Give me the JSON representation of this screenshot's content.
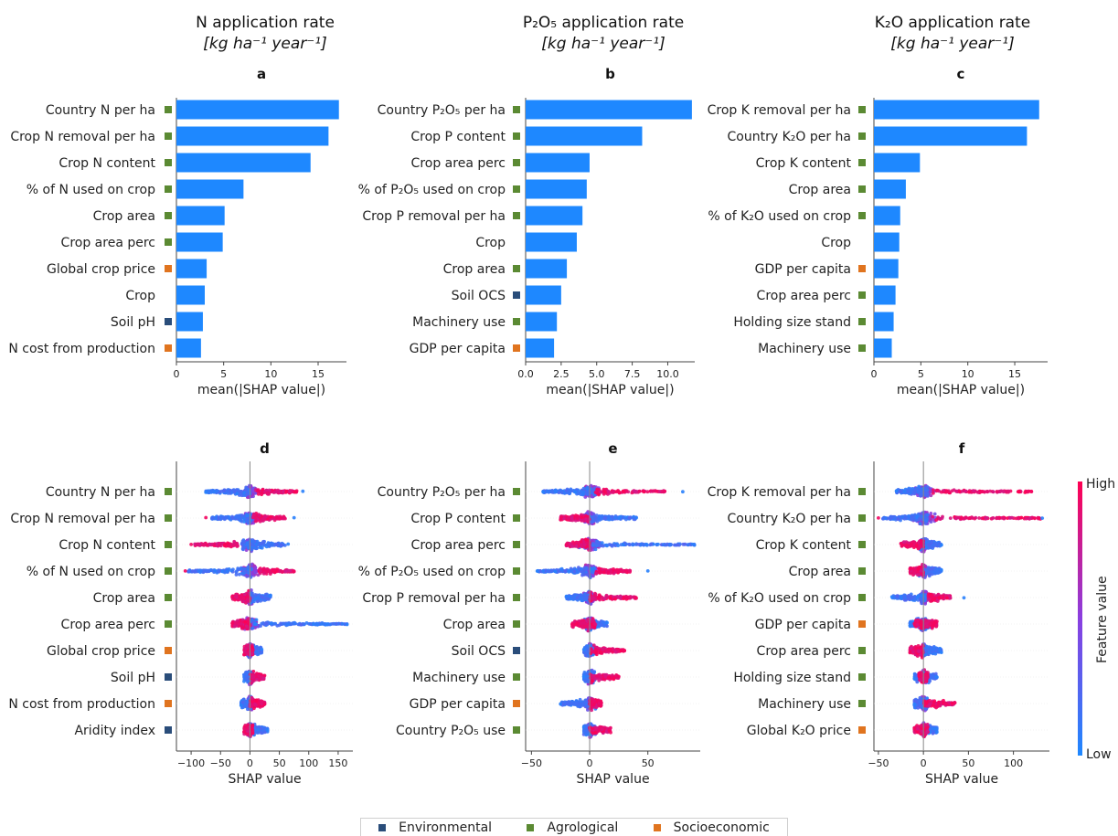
{
  "colors": {
    "bar": "#1e88ff",
    "low": "#1e88ff",
    "mid": "#8a3fe0",
    "high": "#ff0052",
    "Environmental": "#2a4d7a",
    "Agrological": "#5b8a33",
    "Socioeconomic": "#e0741f"
  },
  "column_titles": [
    {
      "line1": "N application rate",
      "line2": "[kg ha⁻¹ year⁻¹]"
    },
    {
      "line1": "P₂O₅ application rate",
      "line2": "[kg ha⁻¹ year⁻¹]"
    },
    {
      "line1": "K₂O application rate",
      "line2": "[kg ha⁻¹ year⁻¹]"
    }
  ],
  "legend": [
    {
      "label": "Environmental",
      "color_key": "Environmental"
    },
    {
      "label": "Agrological",
      "color_key": "Agrological"
    },
    {
      "label": "Socioeconomic",
      "color_key": "Socioeconomic"
    }
  ],
  "colorbar": {
    "label": "Feature value",
    "high": "High",
    "low": "Low"
  },
  "chart_data": [
    {
      "type": "bar",
      "panel": "a",
      "xlabel": "mean(|SHAP value|)",
      "xlim": [
        0,
        18
      ],
      "xticks": [
        0,
        5,
        10,
        15
      ],
      "tick_labels": [
        "0",
        "5",
        "10",
        "15"
      ],
      "categories": [
        "Country N per ha",
        "Crop N removal per ha",
        "Crop N content",
        "% of N used on crop",
        "Crop area",
        "Crop area perc",
        "Global crop price",
        "Crop",
        "Soil pH",
        "N cost from production"
      ],
      "groups": [
        "Agrological",
        "Agrological",
        "Agrological",
        "Agrological",
        "Agrological",
        "Agrological",
        "Socioeconomic",
        "",
        "Environmental",
        "Socioeconomic"
      ],
      "values": [
        17.2,
        16.1,
        14.2,
        7.1,
        5.1,
        4.9,
        3.2,
        3.0,
        2.8,
        2.6
      ]
    },
    {
      "type": "bar",
      "panel": "b",
      "xlabel": "mean(|SHAP value|)",
      "xlim": [
        0,
        11.9
      ],
      "xticks": [
        0,
        2.5,
        5,
        7.5,
        10
      ],
      "tick_labels": [
        "0.0",
        "2.5",
        "5.0",
        "7.5",
        "10.0"
      ],
      "categories": [
        "Country P₂O₅ per ha",
        "Crop P content",
        "Crop area perc",
        "% of P₂O₅ used on crop",
        "Crop P removal per ha",
        "Crop",
        "Crop area",
        "Soil OCS",
        "Machinery use",
        "GDP per capita"
      ],
      "groups": [
        "Agrological",
        "Agrological",
        "Agrological",
        "Agrological",
        "Agrological",
        "",
        "Agrological",
        "Environmental",
        "Agrological",
        "Socioeconomic"
      ],
      "values": [
        11.7,
        8.2,
        4.5,
        4.3,
        4.0,
        3.6,
        2.9,
        2.5,
        2.2,
        2.0
      ]
    },
    {
      "type": "bar",
      "panel": "c",
      "xlabel": "mean(|SHAP value|)",
      "xlim": [
        0,
        18.5
      ],
      "xticks": [
        0,
        5,
        10,
        15
      ],
      "tick_labels": [
        "0",
        "5",
        "10",
        "15"
      ],
      "categories": [
        "Crop K removal per ha",
        "Country K₂O per ha",
        "Crop K content",
        "Crop area",
        "% of K₂O used on crop",
        "Crop",
        "GDP per capita",
        "Crop area perc",
        "Holding size stand",
        "Machinery use"
      ],
      "groups": [
        "Agrological",
        "Agrological",
        "Agrological",
        "Agrological",
        "Agrological",
        "",
        "Socioeconomic",
        "Agrological",
        "Agrological",
        "Agrological"
      ],
      "values": [
        17.6,
        16.3,
        4.9,
        3.4,
        2.8,
        2.7,
        2.6,
        2.3,
        2.1,
        1.9
      ]
    },
    {
      "type": "scatter",
      "panel": "d",
      "xlabel": "SHAP value",
      "xlim": [
        -125,
        175
      ],
      "xticks": [
        -100,
        -50,
        0,
        50,
        100,
        150
      ],
      "tick_labels": [
        "−100",
        "−50",
        "0",
        "50",
        "100",
        "150"
      ],
      "categories": [
        "Country N per ha",
        "Crop N removal per ha",
        "Crop N content",
        "% of N used on crop",
        "Crop area",
        "Crop area perc",
        "Global crop price",
        "Soil pH",
        "N cost from production",
        "Aridity index"
      ],
      "groups": [
        "Agrological",
        "Agrological",
        "Agrological",
        "Agrological",
        "Agrological",
        "Agrological",
        "Socioeconomic",
        "Environmental",
        "Socioeconomic",
        "Environmental"
      ],
      "rows": [
        {
          "blue": [
            -75,
            0
          ],
          "pink": [
            10,
            80
          ],
          "lowMax": -75,
          "highMax": 90
        },
        {
          "blue": [
            -65,
            5
          ],
          "pink": [
            5,
            60
          ],
          "lowMax": -75,
          "highMax": 75
        },
        {
          "blue": [
            -15,
            60
          ],
          "pink": [
            -95,
            -20
          ],
          "lowMax": -100,
          "highMax": 65
        },
        {
          "blue": [
            -105,
            5
          ],
          "pink": [
            15,
            75
          ],
          "lowMax": -110,
          "highMax": 75
        },
        {
          "blue": [
            0,
            35
          ],
          "pink": [
            -30,
            0
          ],
          "lowMax": -30,
          "highMax": 35
        },
        {
          "blue": [
            0,
            165
          ],
          "pink": [
            -30,
            0
          ],
          "lowMax": -30,
          "highMax": 165
        },
        {
          "blue": [
            -5,
            20
          ],
          "pink": [
            -10,
            5
          ],
          "lowMax": -10,
          "highMax": 20
        },
        {
          "blue": [
            -10,
            5
          ],
          "pink": [
            0,
            25
          ],
          "lowMax": -10,
          "highMax": 25
        },
        {
          "blue": [
            -15,
            5
          ],
          "pink": [
            0,
            25
          ],
          "lowMax": -15,
          "highMax": 25
        },
        {
          "blue": [
            0,
            30
          ],
          "pink": [
            -10,
            5
          ],
          "lowMax": -10,
          "highMax": 30
        }
      ]
    },
    {
      "type": "scatter",
      "panel": "e",
      "xlabel": "SHAP value",
      "xlim": [
        -55,
        95
      ],
      "xticks": [
        -50,
        0,
        50
      ],
      "tick_labels": [
        "−50",
        "0",
        "50"
      ],
      "categories": [
        "Country P₂O₅ per ha",
        "Crop P content",
        "Crop area perc",
        "% of P₂O₅ used on crop",
        "Crop P removal per ha",
        "Crop area",
        "Soil OCS",
        "Machinery use",
        "GDP per capita",
        "Country P₂O₅ use"
      ],
      "groups": [
        "Agrological",
        "Agrological",
        "Agrological",
        "Agrological",
        "Agrological",
        "Agrological",
        "Environmental",
        "Agrological",
        "Socioeconomic",
        "Agrological"
      ],
      "rows": [
        {
          "blue": [
            -40,
            5
          ],
          "pink": [
            5,
            65
          ],
          "lowMax": -40,
          "highMax": 80
        },
        {
          "blue": [
            0,
            40
          ],
          "pink": [
            -25,
            0
          ],
          "lowMax": -25,
          "highMax": 40
        },
        {
          "blue": [
            -10,
            90
          ],
          "pink": [
            -20,
            0
          ],
          "lowMax": -20,
          "highMax": 90
        },
        {
          "blue": [
            -45,
            5
          ],
          "pink": [
            5,
            35
          ],
          "lowMax": -45,
          "highMax": 50
        },
        {
          "blue": [
            -20,
            0
          ],
          "pink": [
            0,
            40
          ],
          "lowMax": -20,
          "highMax": 40
        },
        {
          "blue": [
            -10,
            15
          ],
          "pink": [
            -15,
            5
          ],
          "lowMax": -15,
          "highMax": 15
        },
        {
          "blue": [
            -5,
            5
          ],
          "pink": [
            0,
            30
          ],
          "lowMax": -5,
          "highMax": 30
        },
        {
          "blue": [
            -5,
            5
          ],
          "pink": [
            0,
            25
          ],
          "lowMax": -5,
          "highMax": 25
        },
        {
          "blue": [
            -25,
            5
          ],
          "pink": [
            0,
            10
          ],
          "lowMax": -25,
          "highMax": 10
        },
        {
          "blue": [
            -5,
            5
          ],
          "pink": [
            0,
            18
          ],
          "lowMax": -5,
          "highMax": 18
        }
      ]
    },
    {
      "type": "scatter",
      "panel": "f",
      "xlabel": "SHAP value",
      "xlim": [
        -55,
        140
      ],
      "xticks": [
        -50,
        0,
        50,
        100
      ],
      "tick_labels": [
        "−50",
        "0",
        "50",
        "100"
      ],
      "categories": [
        "Crop K removal per ha",
        "Country K₂O per ha",
        "Crop K content",
        "Crop area",
        "% of K₂O used on crop",
        "GDP per capita",
        "Crop area perc",
        "Holding size stand",
        "Machinery use",
        "Global K₂O price"
      ],
      "groups": [
        "Agrological",
        "Agrological",
        "Agrological",
        "Agrological",
        "Agrological",
        "Socioeconomic",
        "Agrological",
        "Agrological",
        "Agrological",
        "Socioeconomic"
      ],
      "rows": [
        {
          "blue": [
            -30,
            5
          ],
          "pink": [
            10,
            120
          ],
          "lowMax": -30,
          "highMax": 120
        },
        {
          "blue": [
            -45,
            5
          ],
          "pink": [
            10,
            130
          ],
          "lowMax": -50,
          "highMax": 132
        },
        {
          "blue": [
            -5,
            20
          ],
          "pink": [
            -25,
            0
          ],
          "lowMax": -25,
          "highMax": 20
        },
        {
          "blue": [
            -5,
            20
          ],
          "pink": [
            -15,
            0
          ],
          "lowMax": -15,
          "highMax": 20
        },
        {
          "blue": [
            -35,
            5
          ],
          "pink": [
            5,
            30
          ],
          "lowMax": -35,
          "highMax": 45
        },
        {
          "blue": [
            -15,
            10
          ],
          "pink": [
            -10,
            15
          ],
          "lowMax": -15,
          "highMax": 15
        },
        {
          "blue": [
            0,
            20
          ],
          "pink": [
            -15,
            0
          ],
          "lowMax": -15,
          "highMax": 20
        },
        {
          "blue": [
            -10,
            15
          ],
          "pink": [
            -5,
            5
          ],
          "lowMax": -10,
          "highMax": 15
        },
        {
          "blue": [
            -10,
            5
          ],
          "pink": [
            0,
            35
          ],
          "lowMax": -10,
          "highMax": 35
        },
        {
          "blue": [
            0,
            15
          ],
          "pink": [
            -10,
            5
          ],
          "lowMax": -10,
          "highMax": 15
        }
      ]
    }
  ]
}
